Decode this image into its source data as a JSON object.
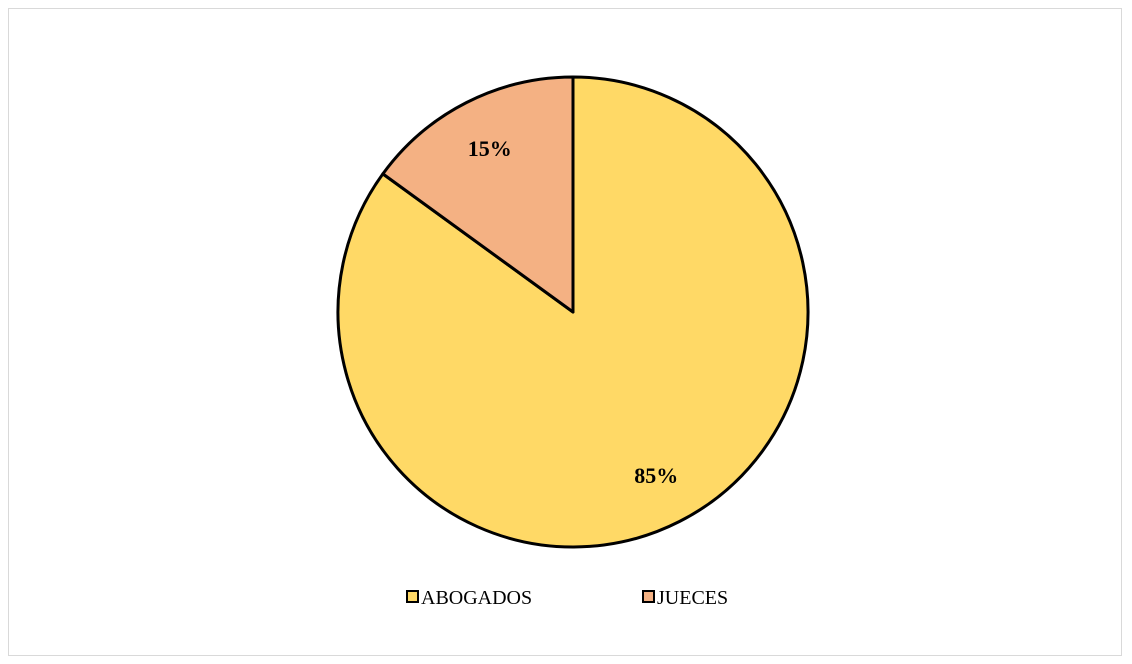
{
  "chart_data": {
    "type": "pie",
    "title": "",
    "start_angle_deg": 0,
    "direction": "clockwise",
    "slices": [
      {
        "label": "ABOGADOS",
        "value": 85,
        "display": "85%",
        "color": "#FFD966"
      },
      {
        "label": "JUECES",
        "value": 15,
        "display": "15%",
        "color": "#F4B183"
      }
    ],
    "legend": {
      "position": "bottom",
      "entries": [
        "ABOGADOS",
        "JUECES"
      ]
    },
    "outline_color": "#000000"
  }
}
